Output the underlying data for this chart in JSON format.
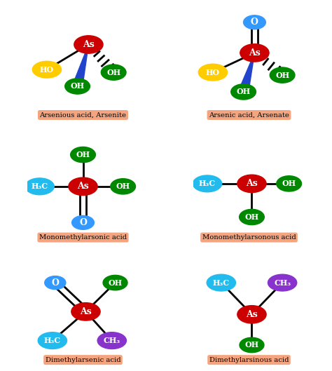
{
  "bg_color": "#ffffff",
  "label_bg": "#f4a580",
  "colors": {
    "As": "#cc0000",
    "OH_green": "#008800",
    "HO_yellow": "#ffcc00",
    "O_blue": "#3399ff",
    "CH3_cyan": "#22bbee",
    "CH3_purple": "#8833cc"
  },
  "labels": [
    "Arsenious acid, Arsenite",
    "Arsenic acid, Arsenate",
    "Monomethylarsonic acid",
    "Monomethylarsonous acid",
    "Dimethylarsenic acid",
    "Dimethylarsinous acid"
  ],
  "panels": [
    {
      "col": 0,
      "row": 0
    },
    {
      "col": 1,
      "row": 0
    },
    {
      "col": 0,
      "row": 1
    },
    {
      "col": 1,
      "row": 1
    },
    {
      "col": 0,
      "row": 2
    },
    {
      "col": 1,
      "row": 2
    }
  ]
}
